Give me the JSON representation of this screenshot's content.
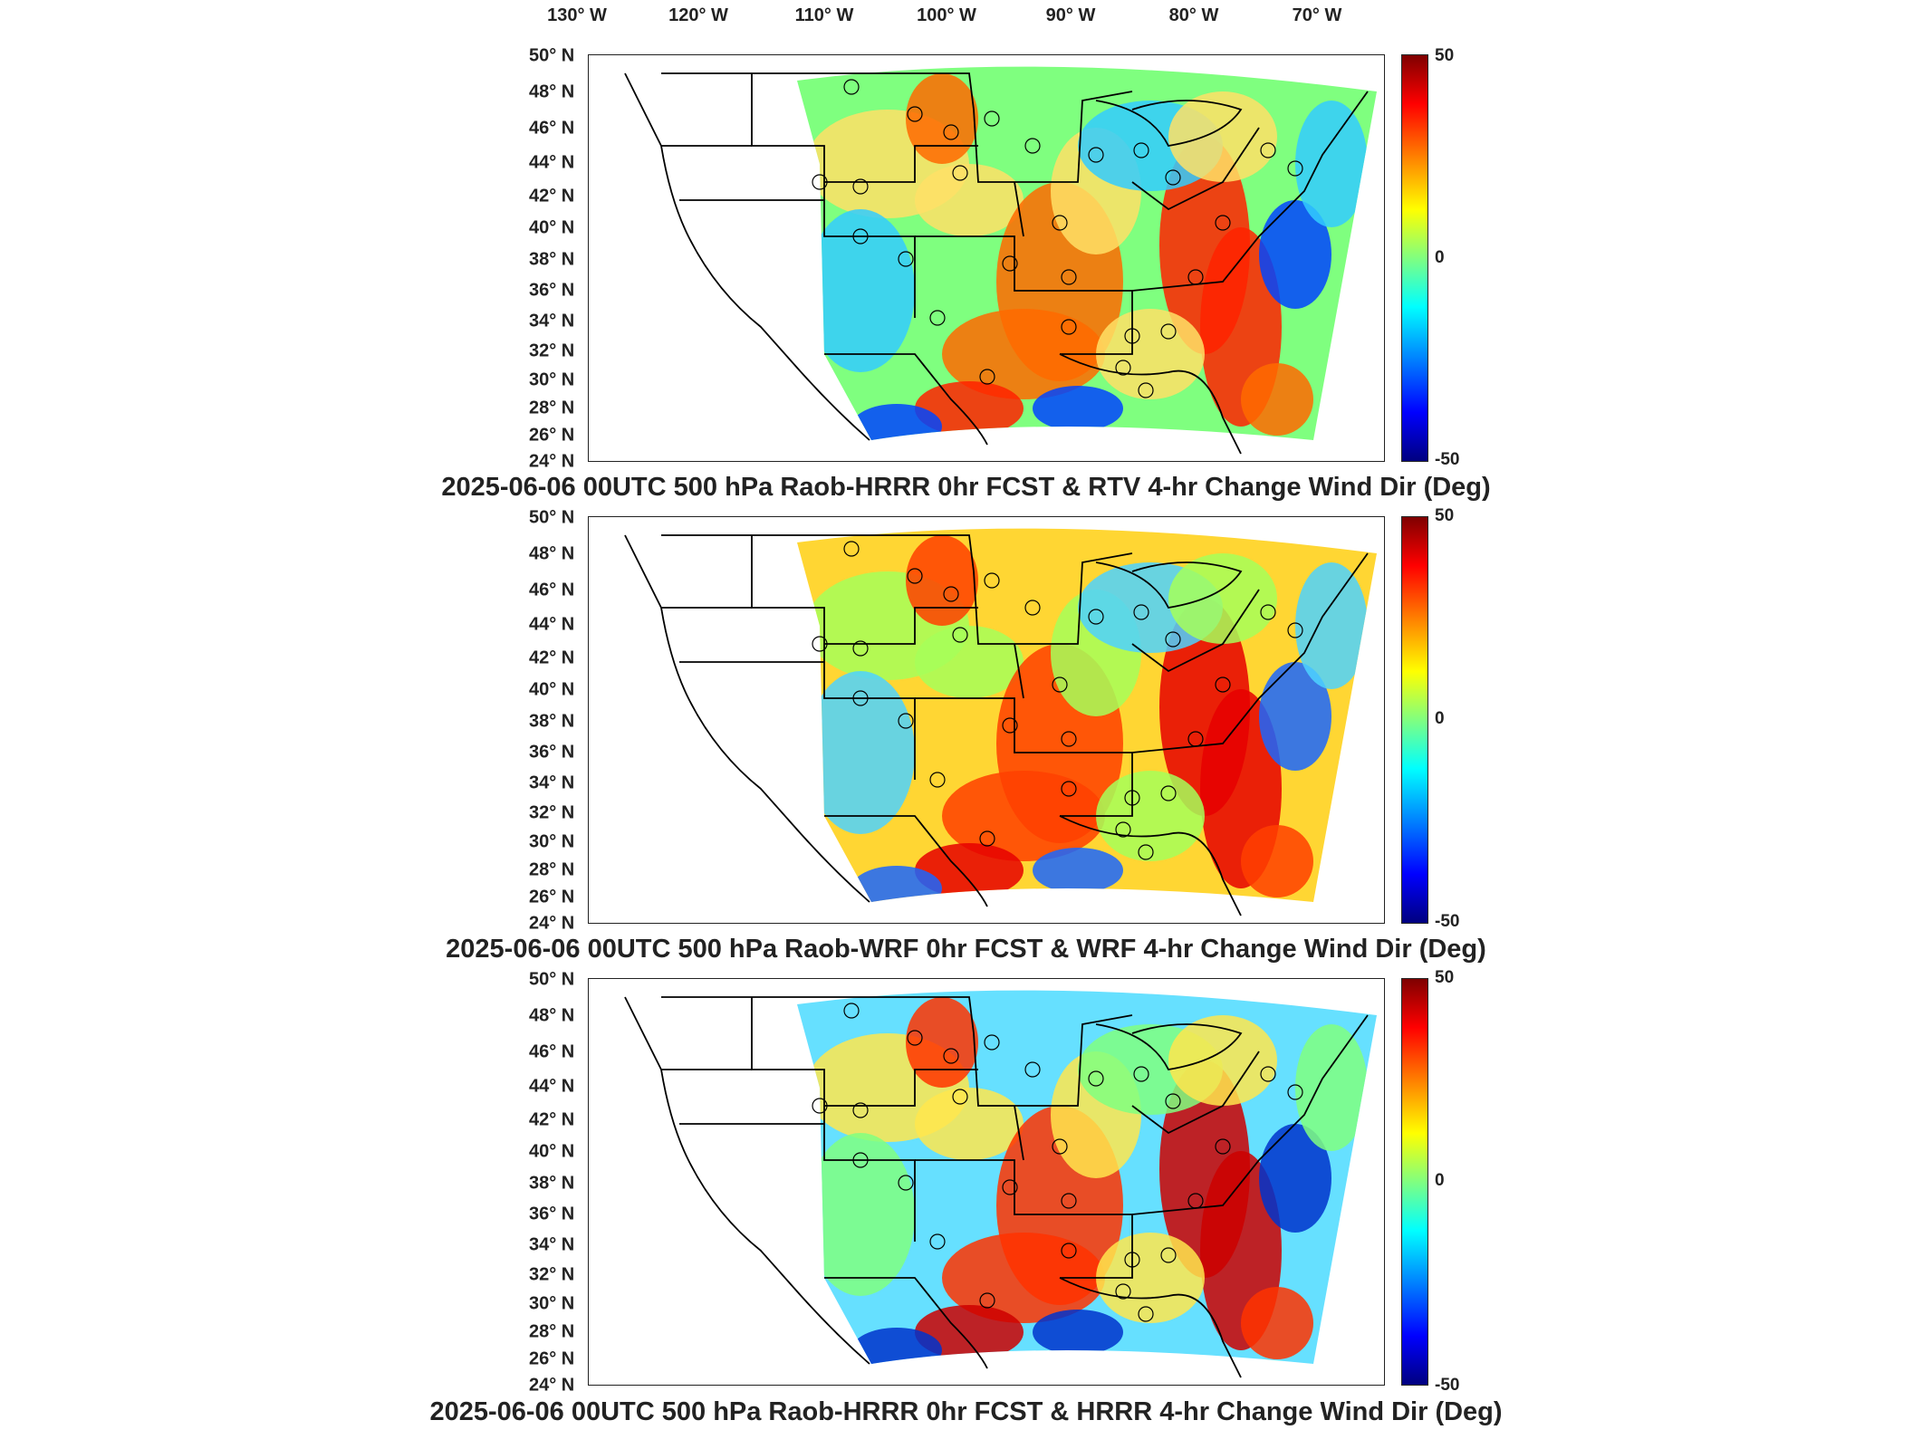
{
  "longitude_labels": [
    "130° W",
    "120° W",
    "110° W",
    "100° W",
    "90° W",
    "80° W",
    "70° W"
  ],
  "latitude_labels": [
    "50° N",
    "48° N",
    "46° N",
    "44° N",
    "42° N",
    "40° N",
    "38° N",
    "36° N",
    "34° N",
    "32° N",
    "30° N",
    "28° N",
    "26° N",
    "24° N"
  ],
  "colorbar": {
    "max_label": "50",
    "mid_label": "0",
    "min_label": "-50",
    "colormap": "jet",
    "range": [
      -50,
      50
    ]
  },
  "panels": [
    {
      "title": "2025-06-06 00UTC 500 hPa Raob-HRRR 0hr FCST & RTV 4-hr Change Wind Dir (Deg)"
    },
    {
      "title": "2025-06-06 00UTC 500 hPa Raob-WRF 0hr FCST & WRF 4-hr Change Wind Dir (Deg)"
    },
    {
      "title": "2025-06-06 00UTC 500 hPa Raob-HRRR 0hr FCST & HRRR 4-hr Change Wind Dir (Deg)"
    }
  ],
  "colors": {
    "frame": "#222222",
    "map_lines": "#000000",
    "background": "#ffffff"
  }
}
